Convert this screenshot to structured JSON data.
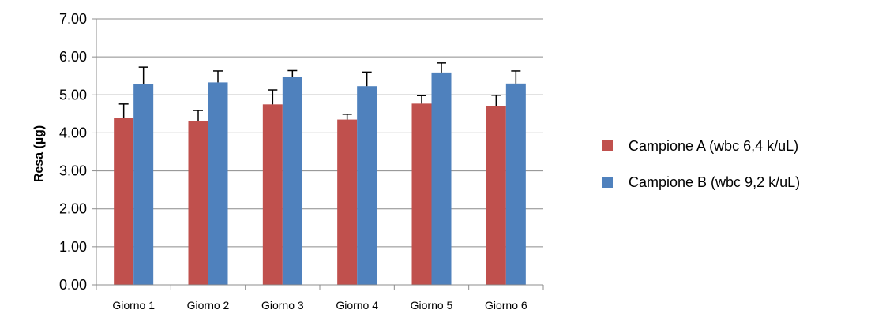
{
  "chart_data": {
    "type": "bar",
    "title": "",
    "xlabel": "",
    "ylabel": "Resa (µg)",
    "ylim": [
      0,
      7
    ],
    "yticks": [
      "0.00",
      "1.00",
      "2.00",
      "3.00",
      "4.00",
      "5.00",
      "6.00",
      "7.00"
    ],
    "grid": true,
    "legend_position": "right",
    "categories": [
      "Giorno 1",
      "Giorno 2",
      "Giorno 3",
      "Giorno 4",
      "Giorno 5",
      "Giorno 6"
    ],
    "series": [
      {
        "name": "Campione A (wbc 6,4 k/uL)",
        "color": "#c0504d",
        "values": [
          4.4,
          4.32,
          4.75,
          4.35,
          4.77,
          4.7
        ],
        "errors": [
          0.36,
          0.27,
          0.38,
          0.14,
          0.21,
          0.29
        ]
      },
      {
        "name": "Campione B (wbc 9,2 k/uL)",
        "color": "#4f81bd",
        "values": [
          5.29,
          5.33,
          5.47,
          5.23,
          5.59,
          5.3
        ],
        "errors": [
          0.44,
          0.3,
          0.17,
          0.37,
          0.25,
          0.33
        ]
      }
    ]
  }
}
